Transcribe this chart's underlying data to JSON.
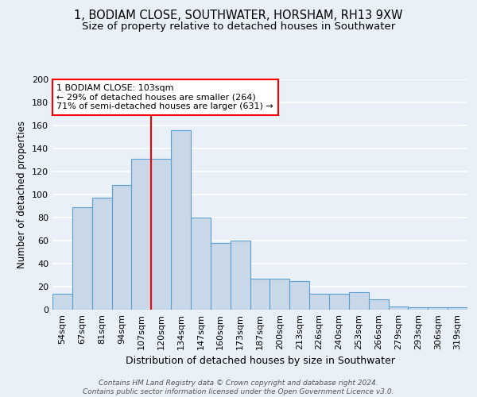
{
  "title1": "1, BODIAM CLOSE, SOUTHWATER, HORSHAM, RH13 9XW",
  "title2": "Size of property relative to detached houses in Southwater",
  "xlabel": "Distribution of detached houses by size in Southwater",
  "ylabel": "Number of detached properties",
  "categories": [
    "54sqm",
    "67sqm",
    "81sqm",
    "94sqm",
    "107sqm",
    "120sqm",
    "134sqm",
    "147sqm",
    "160sqm",
    "173sqm",
    "187sqm",
    "200sqm",
    "213sqm",
    "226sqm",
    "240sqm",
    "253sqm",
    "266sqm",
    "279sqm",
    "293sqm",
    "306sqm",
    "319sqm"
  ],
  "values": [
    14,
    89,
    97,
    108,
    131,
    131,
    156,
    80,
    58,
    60,
    27,
    27,
    25,
    14,
    14,
    15,
    9,
    3,
    2,
    2,
    2
  ],
  "bar_color": "#c8d8e8",
  "bar_edge_color": "#5a9fd4",
  "vline_x": 4.5,
  "vline_color": "red",
  "annotation_text": "1 BODIAM CLOSE: 103sqm\n← 29% of detached houses are smaller (264)\n71% of semi-detached houses are larger (631) →",
  "annotation_box_color": "white",
  "annotation_box_edge": "red",
  "ylim": [
    0,
    200
  ],
  "yticks": [
    0,
    20,
    40,
    60,
    80,
    100,
    120,
    140,
    160,
    180,
    200
  ],
  "footer": "Contains HM Land Registry data © Crown copyright and database right 2024.\nContains public sector information licensed under the Open Government Licence v3.0.",
  "bg_color": "#eaf0f8",
  "grid_color": "#ffffff",
  "title_fontsize": 10.5,
  "subtitle_fontsize": 9.5
}
